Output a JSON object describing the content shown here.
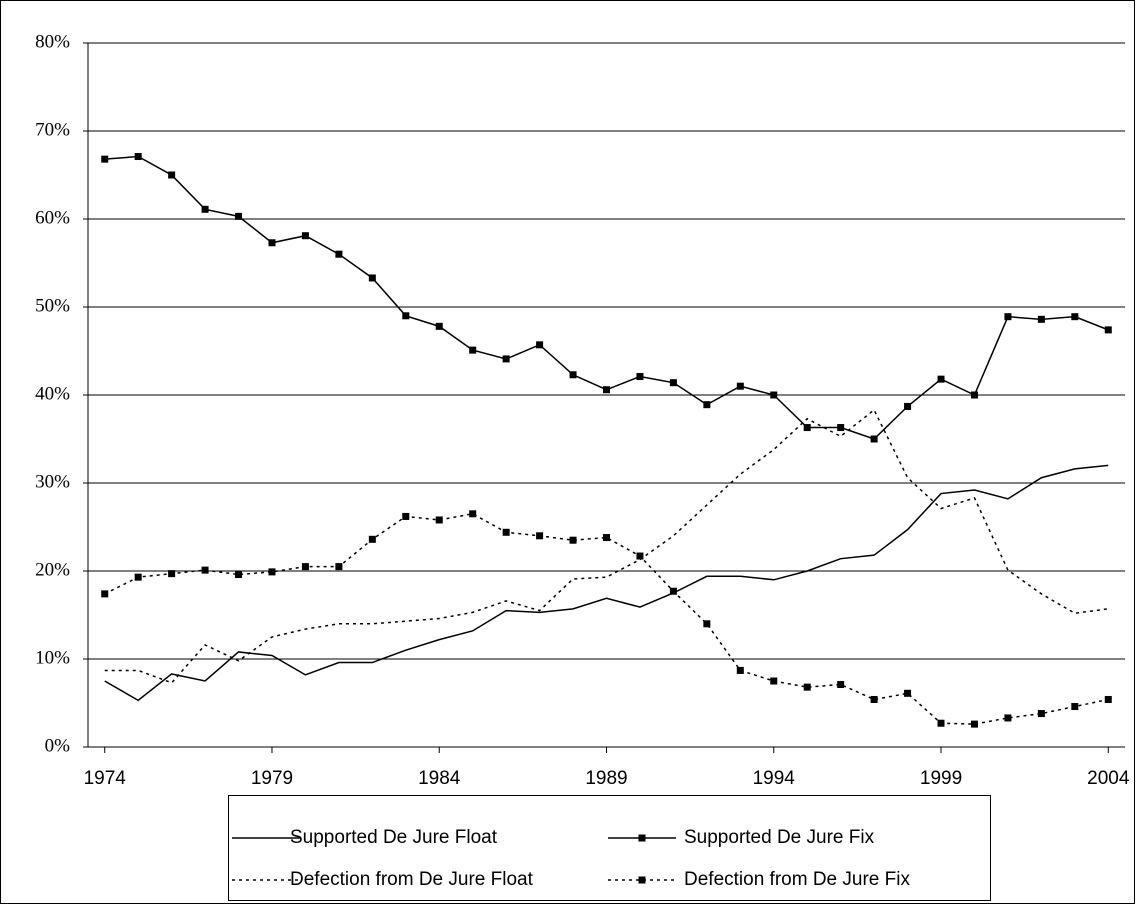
{
  "chart_data": {
    "type": "line",
    "x": [
      1974,
      1975,
      1976,
      1977,
      1978,
      1979,
      1980,
      1981,
      1982,
      1983,
      1984,
      1985,
      1986,
      1987,
      1988,
      1989,
      1990,
      1991,
      1992,
      1993,
      1994,
      1995,
      1996,
      1997,
      1998,
      1999,
      2000,
      2001,
      2002,
      2003,
      2004
    ],
    "xlim": [
      1973.5,
      2004.5
    ],
    "xticks": [
      1974,
      1979,
      1984,
      1989,
      1994,
      1999,
      2004
    ],
    "ylim": [
      0,
      80
    ],
    "yticks": [
      {
        "value": 0,
        "label": "0%"
      },
      {
        "value": 10,
        "label": "10%"
      },
      {
        "value": 20,
        "label": "20%"
      },
      {
        "value": 30,
        "label": "30%"
      },
      {
        "value": 40,
        "label": "40%"
      },
      {
        "value": 50,
        "label": "50%"
      },
      {
        "value": 60,
        "label": "60%"
      },
      {
        "value": 70,
        "label": "70%"
      },
      {
        "value": 80,
        "label": "80%"
      }
    ],
    "grid": true,
    "legend": "bottom",
    "series": [
      {
        "name": "Supported De Jure Float",
        "color": "#000000",
        "dash": "solid",
        "marker": "none",
        "values": [
          7.5,
          5.3,
          8.3,
          7.5,
          10.8,
          10.4,
          8.2,
          9.6,
          9.6,
          11.0,
          12.2,
          13.2,
          15.5,
          15.3,
          15.7,
          16.9,
          15.9,
          17.5,
          19.4,
          19.4,
          19.0,
          20.0,
          21.4,
          21.8,
          24.7,
          28.8,
          29.2,
          28.2,
          30.6,
          31.6,
          32.0
        ]
      },
      {
        "name": "Supported De Jure Fix",
        "color": "#000000",
        "dash": "solid",
        "marker": "square",
        "values": [
          66.8,
          67.1,
          65.0,
          61.1,
          60.3,
          57.3,
          58.1,
          56.0,
          53.3,
          49.0,
          47.8,
          45.1,
          44.1,
          45.7,
          42.3,
          40.6,
          42.1,
          41.4,
          38.9,
          41.0,
          40.0,
          36.3,
          36.3,
          35.0,
          38.7,
          41.8,
          40.0,
          48.9,
          48.6,
          48.9,
          47.4
        ]
      },
      {
        "name": "Defection from De Jure Float",
        "color": "#000000",
        "dash": "dotted",
        "marker": "none",
        "values": [
          8.7,
          8.7,
          7.3,
          11.6,
          9.8,
          12.5,
          13.4,
          14.0,
          14.0,
          14.3,
          14.6,
          15.3,
          16.6,
          15.5,
          19.1,
          19.3,
          21.3,
          24.0,
          27.5,
          31.0,
          33.8,
          37.3,
          35.3,
          38.3,
          30.6,
          27.1,
          28.3,
          20.1,
          17.4,
          15.2,
          15.7
        ]
      },
      {
        "name": "Defection from De Jure Fix",
        "color": "#000000",
        "dash": "dotted",
        "marker": "square",
        "values": [
          17.4,
          19.3,
          19.7,
          20.1,
          19.6,
          19.9,
          20.5,
          20.5,
          23.6,
          26.2,
          25.8,
          26.5,
          24.4,
          24.0,
          23.5,
          23.8,
          21.7,
          17.7,
          14.0,
          8.7,
          7.5,
          6.8,
          7.1,
          5.4,
          6.1,
          2.7,
          2.6,
          3.3,
          3.8,
          4.6,
          5.4
        ]
      }
    ]
  }
}
